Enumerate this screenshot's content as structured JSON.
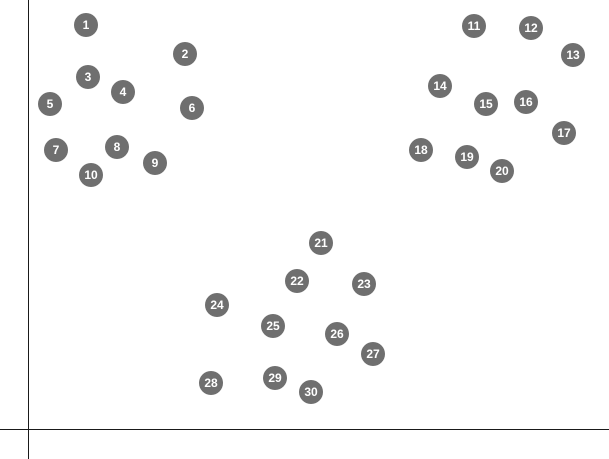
{
  "colors": {
    "marker_fill": "#6f6f6f",
    "marker_text": "#ffffff",
    "axis": "#1a1a1a",
    "background": "#ffffff"
  },
  "markers": [
    {
      "label": "1"
    },
    {
      "label": "2"
    },
    {
      "label": "3"
    },
    {
      "label": "4"
    },
    {
      "label": "5"
    },
    {
      "label": "6"
    },
    {
      "label": "7"
    },
    {
      "label": "8"
    },
    {
      "label": "9"
    },
    {
      "label": "10"
    },
    {
      "label": "11"
    },
    {
      "label": "12"
    },
    {
      "label": "13"
    },
    {
      "label": "14"
    },
    {
      "label": "15"
    },
    {
      "label": "16"
    },
    {
      "label": "17"
    },
    {
      "label": "18"
    },
    {
      "label": "19"
    },
    {
      "label": "20"
    },
    {
      "label": "21"
    },
    {
      "label": "22"
    },
    {
      "label": "23"
    },
    {
      "label": "24"
    },
    {
      "label": "25"
    },
    {
      "label": "26"
    },
    {
      "label": "27"
    },
    {
      "label": "28"
    },
    {
      "label": "29"
    },
    {
      "label": "30"
    }
  ]
}
